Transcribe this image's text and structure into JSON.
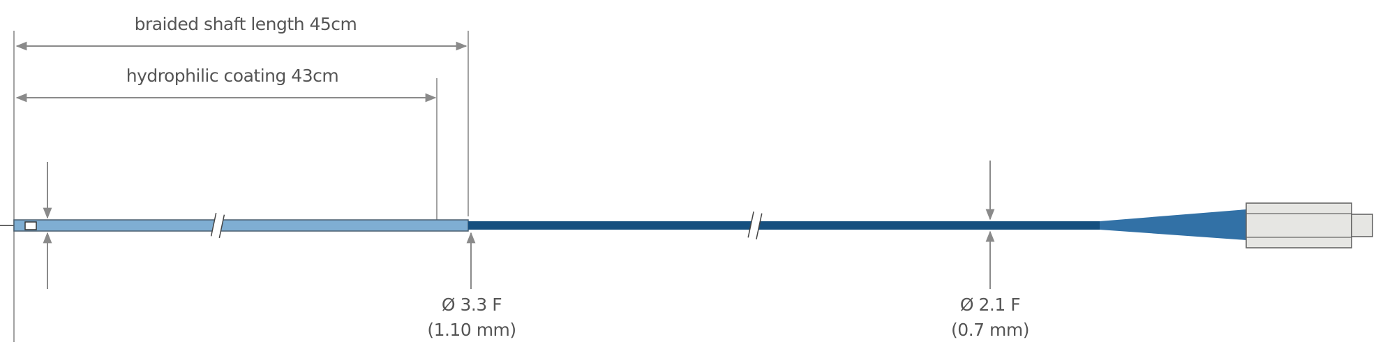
{
  "labels": {
    "braided_shaft": "braided shaft length 45cm",
    "hydrophilic_coating": "hydrophilic coating 43cm",
    "proximal_diameter_f": "Ø 3.3 F",
    "proximal_diameter_mm": "(1.10 mm)",
    "distal_diameter_f": "Ø 2.1 F",
    "distal_diameter_mm": "(0.7 mm)"
  },
  "colors": {
    "shaft_light": "#7faed3",
    "shaft_dark": "#154f7f",
    "hub": "#3271a6",
    "connector": "#e6e6e3",
    "dimension": "#8a8a8a",
    "text": "#555555"
  }
}
